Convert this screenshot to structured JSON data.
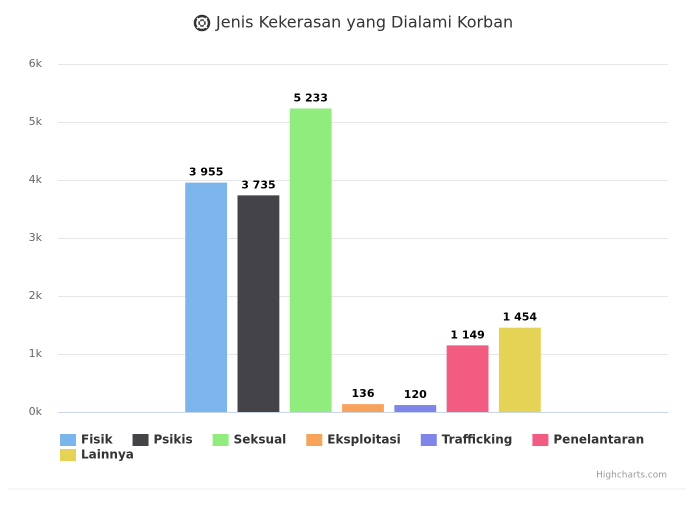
{
  "chart_data": {
    "type": "bar",
    "title": "Jenis Kekerasan yang Dialami Korban",
    "categories": [
      null
    ],
    "series": [
      {
        "name": "Fisik",
        "color": "#7cb5ec",
        "values": [
          3955
        ],
        "value_labels": [
          "3 955"
        ]
      },
      {
        "name": "Psikis",
        "color": "#434348",
        "values": [
          3735
        ],
        "value_labels": [
          "3 735"
        ]
      },
      {
        "name": "Seksual",
        "color": "#90ed7d",
        "values": [
          5233
        ],
        "value_labels": [
          "5 233"
        ]
      },
      {
        "name": "Eksploitasi",
        "color": "#f7a35c",
        "values": [
          136
        ],
        "value_labels": [
          "136"
        ]
      },
      {
        "name": "Trafficking",
        "color": "#8085e9",
        "values": [
          120
        ],
        "value_labels": [
          "120"
        ]
      },
      {
        "name": "Penelantaran",
        "color": "#f15c80",
        "values": [
          1149
        ],
        "value_labels": [
          "1 149"
        ]
      },
      {
        "name": "Lainnya",
        "color": "#e4d354",
        "values": [
          1454
        ],
        "value_labels": [
          "1 454"
        ]
      }
    ],
    "ylim": [
      0,
      6000
    ],
    "yticks": [
      {
        "value": 0,
        "label": "0k"
      },
      {
        "value": 1000,
        "label": "1k"
      },
      {
        "value": 2000,
        "label": "2k"
      },
      {
        "value": 3000,
        "label": "3k"
      },
      {
        "value": 4000,
        "label": "4k"
      },
      {
        "value": 5000,
        "label": "5k"
      },
      {
        "value": 6000,
        "label": "6k"
      }
    ],
    "grid": true,
    "legend": "bottom",
    "credits": "Highcharts.com"
  }
}
